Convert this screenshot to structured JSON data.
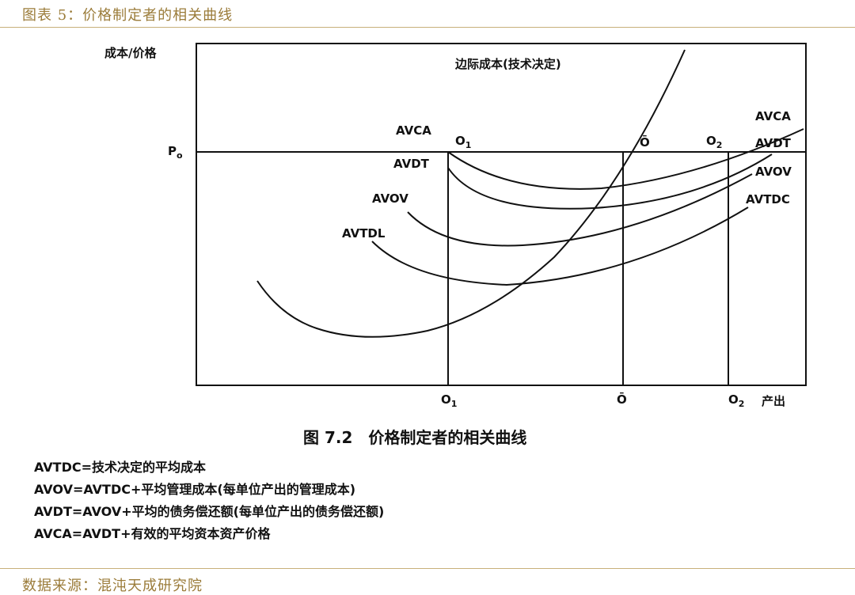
{
  "header": {
    "title": "图表 5：价格制定者的相关曲线"
  },
  "footer": {
    "source": "数据来源：混沌天成研究院"
  },
  "figure": {
    "caption": "图 7.2　价格制定者的相关曲线",
    "y_axis_label": "成本/价格",
    "x_axis_label": "产出",
    "price_label": "P",
    "price_subscript": "o",
    "marginal_cost_label": "边际成本(技术决定)",
    "point_labels": {
      "o1_top": "O",
      "o1_top_sub": "1",
      "o_top": "Ō",
      "o2_top": "O",
      "o2_top_sub": "2",
      "o1_bottom": "O",
      "o1_bottom_sub": "1",
      "o_bottom": "Ō",
      "o2_bottom": "O",
      "o2_bottom_sub": "2"
    },
    "curve_labels": {
      "avca_left": "AVCA",
      "avdt_left": "AVDT",
      "avov_left": "AVOV",
      "avtdl_left": "AVTDL",
      "avca_right": "AVCA",
      "avdt_right": "AVDT",
      "avov_right": "AVOV",
      "avtdc_right": "AVTDC"
    },
    "legend": [
      "AVTDC=技术决定的平均成本",
      "AVOV=AVTDC+平均管理成本(每单位产出的管理成本)",
      "AVDT=AVOV+平均的债务偿还额(每单位产出的债务偿还额)",
      "AVCA=AVDT+有效的平均资本资产价格"
    ]
  }
}
